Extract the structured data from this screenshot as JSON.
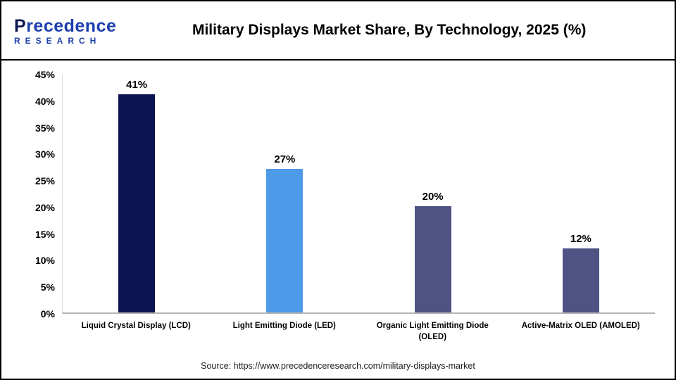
{
  "header": {
    "brand_line1": "Precedence",
    "brand_line2": "RESEARCH",
    "brand_color": "#1d3fae",
    "title": "Military Displays Market Share, By Technology, 2025 (%)"
  },
  "chart_data": {
    "type": "bar",
    "title": "Military Displays Market Share, By Technology, 2025 (%)",
    "categories": [
      "Liquid Crystal Display (LCD)",
      "Light Emitting Diode (LED)",
      "Organic Light Emitting Diode (OLED)",
      "Active-Matrix OLED (AMOLED)"
    ],
    "values": [
      41,
      27,
      20,
      12
    ],
    "value_labels": [
      "41%",
      "27%",
      "20%",
      "12%"
    ],
    "bar_colors": [
      "#0b1550",
      "#4d9be8",
      "#4e5384",
      "#4e5384"
    ],
    "xlabel": "",
    "ylabel": "",
    "ylim": [
      0,
      45
    ],
    "yticks": [
      0,
      5,
      10,
      15,
      20,
      25,
      30,
      35,
      40,
      45
    ],
    "ytick_labels": [
      "0%",
      "5%",
      "10%",
      "15%",
      "20%",
      "25%",
      "30%",
      "35%",
      "40%",
      "45%"
    ],
    "grid": false,
    "legend": false,
    "background": "#ffffff"
  },
  "footer": {
    "source": "Source: https://www.precedenceresearch.com/military-displays-market"
  }
}
